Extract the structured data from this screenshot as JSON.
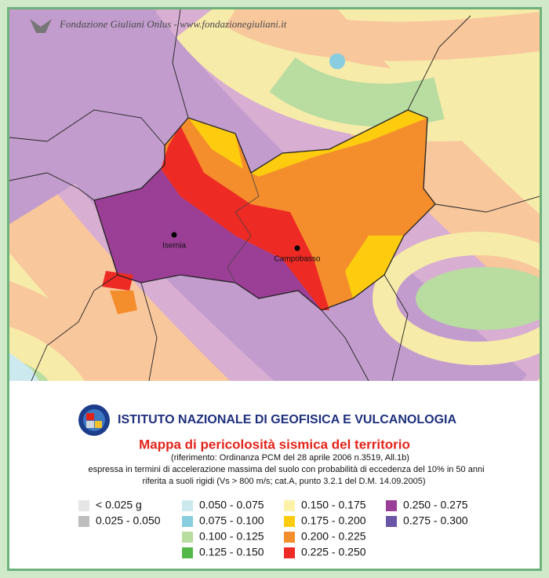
{
  "watermark": "Fondazione Giuliani Onlus - www.fondazionegiuliani.it",
  "cities": [
    {
      "name": "Isernia"
    },
    {
      "name": "Campobasso"
    }
  ],
  "header": {
    "institute": "ISTITUTO NAZIONALE DI GEOFISICA E VULCANOLOGIA",
    "title": "Mappa di pericolosità sismica del territorio",
    "subtitle": [
      "(riferimento: Ordinanza PCM del 28 aprile 2006 n.3519, All.1b)",
      "espressa in termini di accelerazione massima del suolo con probabilità di eccedenza del 10% in 50 anni",
      "riferita a suoli rigidi (Vs  > 800 m/s; cat.A, punto 3.2.1 del D.M. 14.09.2005)"
    ]
  },
  "legend": [
    [
      {
        "label": "< 0.025 g",
        "color": "#e6e6e6"
      },
      {
        "label": "0.025 - 0.050",
        "color": "#bdbdbd"
      }
    ],
    [
      {
        "label": "0.050 - 0.075",
        "color": "#cde9f0"
      },
      {
        "label": "0.075 - 0.100",
        "color": "#88cde0"
      },
      {
        "label": "0.100 - 0.125",
        "color": "#b9dca0"
      },
      {
        "label": "0.125 - 0.150",
        "color": "#54b848"
      }
    ],
    [
      {
        "label": "0.150 - 0.175",
        "color": "#fdf2a8"
      },
      {
        "label": "0.175 - 0.200",
        "color": "#fdcc0f"
      },
      {
        "label": "0.200 - 0.225",
        "color": "#f48d2c"
      },
      {
        "label": "0.225 - 0.250",
        "color": "#ee2a24"
      }
    ],
    [
      {
        "label": "0.250 - 0.275",
        "color": "#9b3f96"
      },
      {
        "label": "0.275 - 0.300",
        "color": "#6b55a6"
      }
    ]
  ]
}
